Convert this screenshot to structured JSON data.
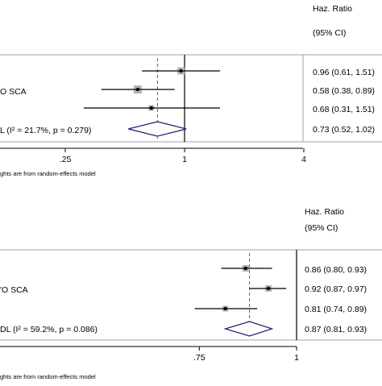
{
  "panel_top": {
    "header_title": "Haz. Ratio",
    "header_ci": "(95% CI)",
    "rows": [
      {
        "label": "",
        "est_text": "0.96 (0.61, 1.51)"
      },
      {
        "label": "O SCA",
        "est_text": "0.58 (0.38, 0.89)"
      },
      {
        "label": "",
        "est_text": "0.68 (0.31, 1.51)"
      },
      {
        "label": "L (I² = 21.7%, p = 0.279)",
        "est_text": "0.73 (0.52, 1.02)"
      }
    ],
    "tick_labels": [
      ".25",
      "1",
      "4"
    ],
    "footnote": "ghts are from random-effects model"
  },
  "panel_bottom": {
    "header_title": "Haz. Ratio",
    "header_ci": "(95% CI)",
    "rows": [
      {
        "label": "",
        "est_text": "0.86 (0.80, 0.93)"
      },
      {
        "label": "'O SCA",
        "est_text": "0.92 (0.87, 0.97)"
      },
      {
        "label": "",
        "est_text": "0.81 (0.74, 0.89)"
      },
      {
        "label": "DL (I² = 59.2%, p = 0.086)",
        "est_text": "0.87 (0.81, 0.93)"
      }
    ],
    "tick_labels": [
      ".75",
      "1"
    ],
    "footnote": "ghts are from random-effects model"
  },
  "chart_data": [
    {
      "type": "forest",
      "scale": "log",
      "xticks": [
        0.25,
        1,
        4
      ],
      "null_line": 1,
      "pooled_line": 0.73,
      "studies": [
        {
          "hr": 0.96,
          "lo": 0.61,
          "hi": 1.51
        },
        {
          "hr": 0.58,
          "lo": 0.38,
          "hi": 0.89
        },
        {
          "hr": 0.68,
          "lo": 0.31,
          "hi": 1.51
        }
      ],
      "pooled": {
        "hr": 0.73,
        "lo": 0.52,
        "hi": 1.02
      }
    },
    {
      "type": "forest",
      "scale": "log",
      "xticks": [
        0.75,
        1
      ],
      "null_line": 1,
      "pooled_line": 0.87,
      "studies": [
        {
          "hr": 0.86,
          "lo": 0.8,
          "hi": 0.93
        },
        {
          "hr": 0.92,
          "lo": 0.87,
          "hi": 0.97
        },
        {
          "hr": 0.81,
          "lo": 0.74,
          "hi": 0.89
        }
      ],
      "pooled": {
        "hr": 0.87,
        "lo": 0.81,
        "hi": 0.93
      }
    }
  ],
  "colors": {
    "ink": "#000000",
    "box": "#b4b4b4",
    "diamond": "#1f1f7a",
    "dashed": "#b33a3a",
    "frame": "#9aa3b5"
  }
}
